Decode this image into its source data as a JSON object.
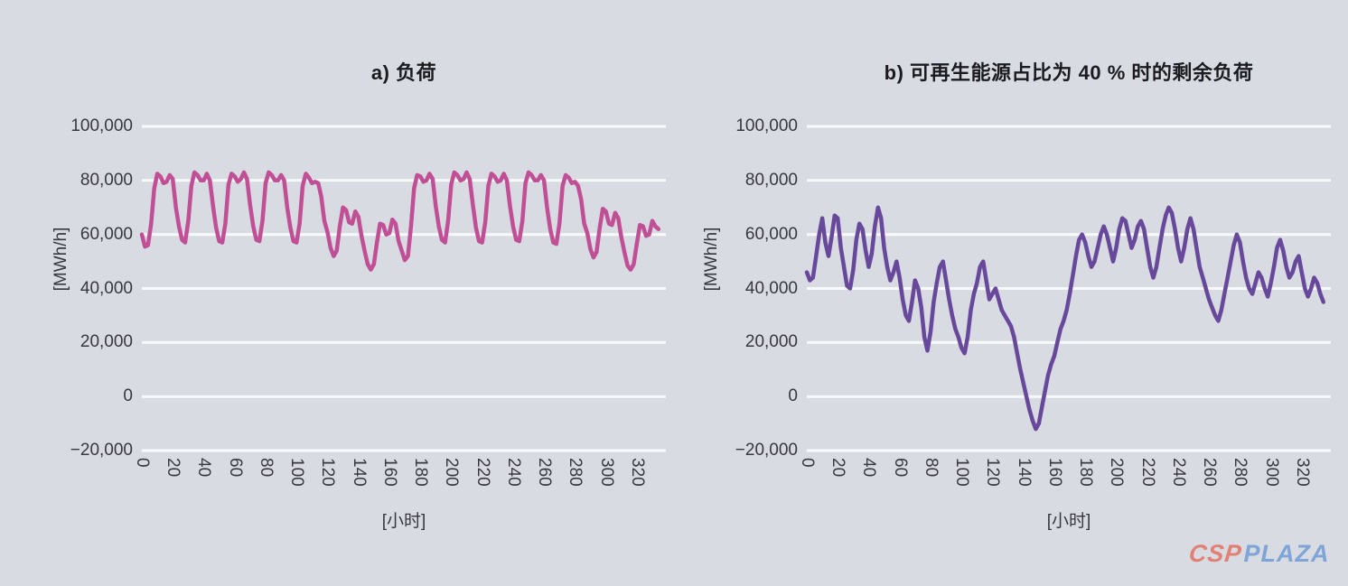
{
  "page": {
    "background": "#d8dbe1",
    "gridline_color": "#f8f9fb",
    "text_color": "#38383e"
  },
  "watermark": {
    "csp": "CSP",
    "plaza": "PLAZA",
    "csp_color": "#e5796c",
    "plaza_color": "#78a1d8"
  },
  "chart_data": [
    {
      "type": "line",
      "title": "a) 负荷",
      "xlabel": "[小时]",
      "ylabel": "[MWh/h]",
      "line_color": "#c04f96",
      "ylim": [
        -20000,
        100000
      ],
      "y_ticks": [
        100000,
        80000,
        60000,
        40000,
        20000,
        0,
        -20000
      ],
      "y_tick_labels": [
        "100,000",
        "80,000",
        "60,000",
        "40,000",
        "20,000",
        "0",
        "−20,000"
      ],
      "x_ticks": [
        0,
        20,
        40,
        60,
        80,
        100,
        120,
        140,
        160,
        180,
        200,
        220,
        240,
        260,
        280,
        300,
        320
      ],
      "x_start": 0,
      "x_step": 2,
      "grid": "horizontal",
      "legend": "none",
      "series": [
        {
          "name": "负荷",
          "values": [
            60000,
            55500,
            56000,
            64000,
            77000,
            82500,
            81500,
            79000,
            79500,
            82000,
            80500,
            70000,
            63000,
            58000,
            57000,
            65000,
            78000,
            83000,
            82000,
            80000,
            80000,
            82500,
            80000,
            70500,
            62500,
            57500,
            57000,
            64000,
            78500,
            82500,
            81500,
            79500,
            80500,
            83000,
            80500,
            71000,
            63000,
            58000,
            57500,
            65000,
            79000,
            83000,
            82000,
            80000,
            80000,
            82000,
            80000,
            70000,
            62500,
            57500,
            57000,
            64000,
            78000,
            82500,
            81000,
            79000,
            79500,
            79000,
            74000,
            65000,
            61000,
            55000,
            52000,
            54000,
            63000,
            70000,
            69000,
            64500,
            64000,
            68500,
            66500,
            59500,
            54000,
            49000,
            47000,
            49000,
            57000,
            64000,
            63500,
            60000,
            60500,
            65500,
            64000,
            57500,
            54000,
            50500,
            52000,
            63000,
            77000,
            82000,
            81500,
            79500,
            80000,
            82500,
            80500,
            70500,
            63000,
            58000,
            57000,
            65000,
            78500,
            83000,
            82000,
            80000,
            80500,
            83000,
            80500,
            71000,
            62500,
            57500,
            57000,
            64500,
            78000,
            82500,
            81500,
            79500,
            80000,
            82500,
            80000,
            70500,
            63000,
            58000,
            57500,
            65000,
            79000,
            83000,
            82000,
            80000,
            80000,
            82000,
            80000,
            70000,
            62000,
            57000,
            56500,
            64000,
            78000,
            82000,
            81000,
            79000,
            79500,
            78000,
            73000,
            64000,
            60500,
            54500,
            51500,
            53500,
            62500,
            69500,
            68500,
            64000,
            63500,
            68000,
            66000,
            59000,
            53500,
            48500,
            47000,
            49000,
            56500,
            63500,
            63000,
            59500,
            60000,
            65000,
            63000,
            62000
          ]
        }
      ]
    },
    {
      "type": "line",
      "title": "b) 可再生能源占比为 40 % 时的剩余负荷",
      "xlabel": "[小时]",
      "ylabel": "[MWh/h]",
      "line_color": "#67489b",
      "ylim": [
        -20000,
        100000
      ],
      "y_ticks": [
        100000,
        80000,
        60000,
        40000,
        20000,
        0,
        -20000
      ],
      "y_tick_labels": [
        "100,000",
        "80,000",
        "60,000",
        "40,000",
        "20,000",
        "0",
        "−20,000"
      ],
      "x_ticks": [
        0,
        20,
        40,
        60,
        80,
        100,
        120,
        140,
        160,
        180,
        200,
        220,
        240,
        260,
        280,
        300,
        320
      ],
      "x_start": 0,
      "x_step": 2,
      "grid": "horizontal",
      "legend": "none",
      "series": [
        {
          "name": "剩余负荷（可再生能源占比 40%）",
          "values": [
            46000,
            43000,
            44000,
            52000,
            60000,
            66000,
            57000,
            52000,
            59000,
            67000,
            66000,
            55000,
            48000,
            41000,
            40000,
            47000,
            58000,
            64000,
            62000,
            54000,
            48000,
            53000,
            63000,
            70000,
            66000,
            55000,
            48000,
            43000,
            46000,
            50000,
            44000,
            36000,
            30000,
            28000,
            35000,
            43000,
            40000,
            33000,
            22000,
            17000,
            24000,
            35000,
            42000,
            48000,
            50000,
            43000,
            36000,
            30000,
            25000,
            22000,
            18000,
            16000,
            22000,
            32000,
            38000,
            42000,
            48000,
            50000,
            43000,
            36000,
            38000,
            40000,
            36000,
            32000,
            30000,
            28000,
            26000,
            22000,
            16000,
            10000,
            5000,
            0,
            -5000,
            -9000,
            -12000,
            -10000,
            -4000,
            2000,
            8000,
            12000,
            15000,
            20000,
            25000,
            28000,
            32000,
            38000,
            45000,
            52000,
            58000,
            60000,
            57000,
            52000,
            48000,
            50000,
            55000,
            60000,
            63000,
            60000,
            55000,
            50000,
            55000,
            62000,
            66000,
            65000,
            60000,
            55000,
            58000,
            63000,
            65000,
            62000,
            55000,
            48000,
            44000,
            48000,
            55000,
            62000,
            67000,
            70000,
            68000,
            62000,
            55000,
            50000,
            55000,
            62000,
            66000,
            62000,
            55000,
            48000,
            44000,
            40000,
            36000,
            33000,
            30000,
            28000,
            32000,
            38000,
            44000,
            50000,
            56000,
            60000,
            57000,
            50000,
            44000,
            40000,
            38000,
            42000,
            46000,
            44000,
            40000,
            37000,
            42000,
            48000,
            55000,
            58000,
            54000,
            48000,
            44000,
            46000,
            50000,
            52000,
            46000,
            40000,
            37000,
            40000,
            44000,
            42000,
            38000,
            35000
          ]
        }
      ]
    }
  ]
}
